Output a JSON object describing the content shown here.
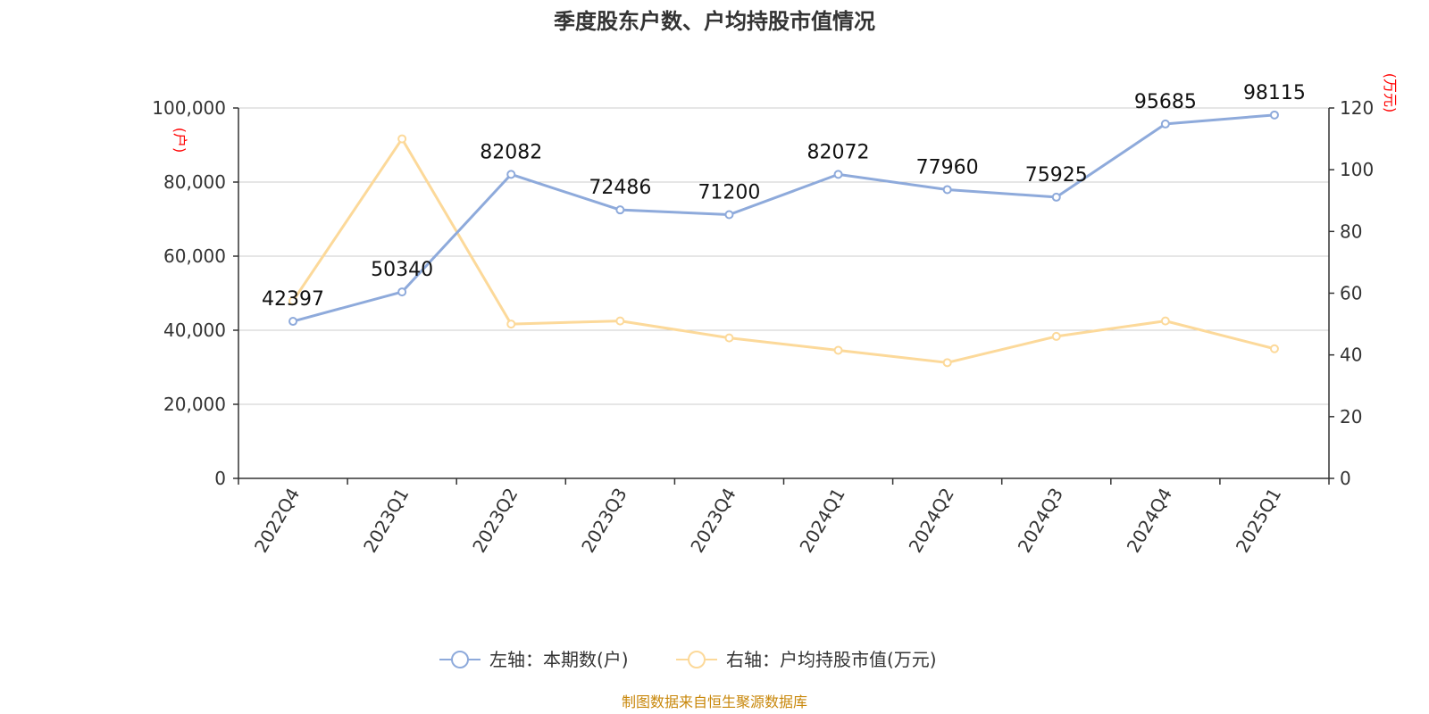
{
  "chart_data": {
    "type": "line",
    "title": "季度股东户数、户均持股市值情况",
    "categories": [
      "2022Q4",
      "2023Q1",
      "2023Q2",
      "2023Q3",
      "2023Q4",
      "2024Q1",
      "2024Q2",
      "2024Q3",
      "2024Q4",
      "2025Q1"
    ],
    "series": [
      {
        "name": "左轴：本期数(户)",
        "axis": "left",
        "color": "#8eaadb",
        "values": [
          42397,
          50340,
          82082,
          72486,
          71200,
          82072,
          77960,
          75925,
          95685,
          98115
        ],
        "labels": [
          "42397",
          "50340",
          "82082",
          "72486",
          "71200",
          "82072",
          "77960",
          "75925",
          "95685",
          "98115"
        ]
      },
      {
        "name": "右轴：户均持股市值(万元)",
        "axis": "right",
        "color": "#fcd99a",
        "values": [
          57.5,
          110.0,
          50.0,
          51.0,
          45.5,
          41.5,
          37.5,
          46.0,
          51.0,
          42.0
        ]
      }
    ],
    "y_left": {
      "min": 0,
      "max": 100000,
      "ticks": [
        "0",
        "20,000",
        "40,000",
        "60,000",
        "80,000",
        "100,000"
      ],
      "unit": "(户)"
    },
    "y_right": {
      "min": 0,
      "max": 120,
      "ticks": [
        "0",
        "20",
        "40",
        "60",
        "80",
        "100",
        "120"
      ],
      "unit": "(万元)"
    },
    "grid": true,
    "legend_position": "bottom-center"
  },
  "source": "制图数据来自恒生聚源数据库"
}
